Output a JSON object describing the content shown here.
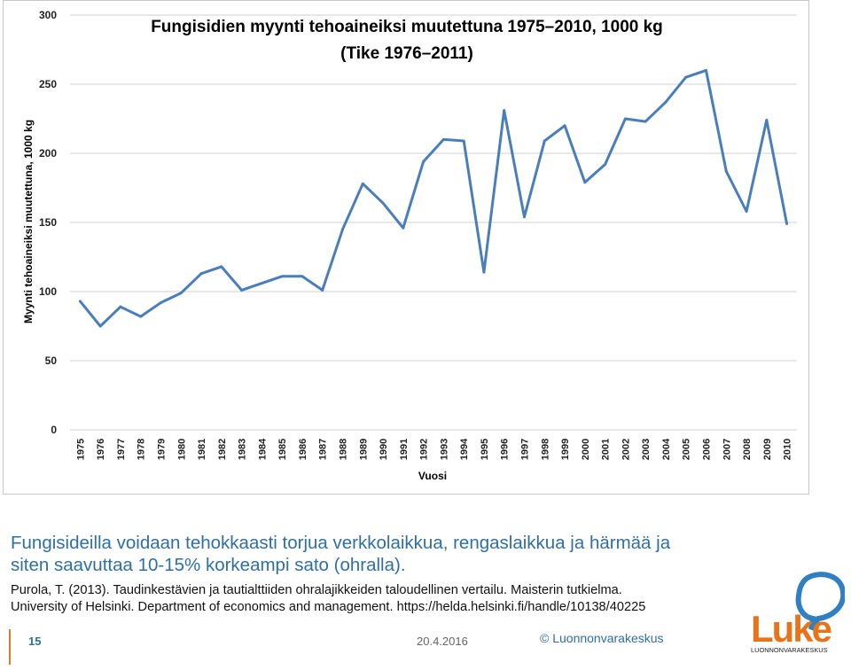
{
  "chart_data": {
    "type": "line",
    "title_line1": "Fungisidien myynti tehoaineiksi muutettuna 1975–2010, 1000 kg",
    "title_line2": "(Tike 1976–2011)",
    "xlabel": "Vuosi",
    "ylabel": "Myynti tehoaineiksi muutettuna, 1000 kg",
    "ylim": [
      0,
      300
    ],
    "yticks": [
      "0",
      "50",
      "100",
      "150",
      "200",
      "250",
      "300"
    ],
    "grid": true,
    "line_color": "#4a7ebb",
    "categories": [
      "1975",
      "1976",
      "1977",
      "1978",
      "1979",
      "1980",
      "1981",
      "1982",
      "1983",
      "1984",
      "1985",
      "1986",
      "1987",
      "1988",
      "1989",
      "1990",
      "1991",
      "1992",
      "1993",
      "1994",
      "1995",
      "1996",
      "1997",
      "1998",
      "1999",
      "2000",
      "2001",
      "2002",
      "2003",
      "2004",
      "2005",
      "2006",
      "2007",
      "2008",
      "2009",
      "2010"
    ],
    "series": [
      {
        "values": [
          93,
          75,
          89,
          82,
          92,
          99,
          113,
          118,
          101,
          106,
          111,
          111,
          101,
          145,
          178,
          164,
          146,
          194,
          210,
          209,
          114,
          231,
          154,
          209,
          220,
          179,
          192,
          225,
          223,
          237,
          255,
          260,
          187,
          158,
          224,
          149
        ]
      }
    ]
  },
  "caption": {
    "line1": "Fungisideilla voidaan tehokkaasti torjua verkkolaikkua, rengaslaikkua ja härmää ja",
    "line2": "siten saavuttaa 10-15% korkeampi sato (ohralla)."
  },
  "reference": {
    "line1": "Purola, T. (2013). Taudinkestävien ja tautialttiiden ohralajikkeiden taloudellinen vertailu. Maisterin tutkielma.",
    "line2": "University of Helsinki.  Department of economics and management.  https://helda.helsinki.fi/handle/10138/40225"
  },
  "footer": {
    "page_number": "15",
    "date": "20.4.2016",
    "copyright": "© Luonnonvarakeskus"
  },
  "logo": {
    "wordmark": "Luke",
    "subtext": "LUONNONVARAKESKUS",
    "color_orange": "#e8731a",
    "color_blue": "#2f7fc1"
  }
}
